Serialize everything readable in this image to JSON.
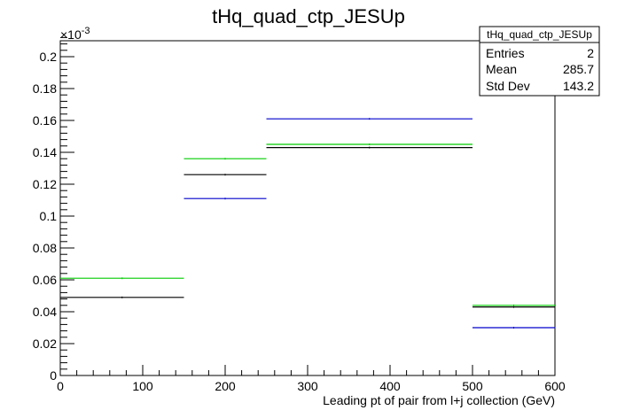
{
  "chart_data": {
    "type": "histogram",
    "title": "tHq_quad_ctp_JESUp",
    "xlabel": "Leading pt of pair from l+j collection (GeV)",
    "ylabel": "",
    "xlim": [
      0,
      600
    ],
    "ylim": [
      0,
      0.21
    ],
    "y_multiplier_label": "×10",
    "y_multiplier_exponent": "-3",
    "x_ticks": [
      0,
      100,
      200,
      300,
      400,
      500,
      600
    ],
    "x_tick_labels": [
      "0",
      "100",
      "200",
      "300",
      "400",
      "500",
      "600"
    ],
    "y_ticks": [
      0,
      0.02,
      0.04,
      0.06,
      0.08,
      0.1,
      0.12,
      0.14,
      0.16,
      0.18,
      0.2
    ],
    "y_tick_labels": [
      "0",
      "0.02",
      "0.04",
      "0.06",
      "0.08",
      "0.1",
      "0.12",
      "0.14",
      "0.16",
      "0.18",
      "0.2"
    ],
    "bin_edges": [
      0,
      150,
      250,
      500,
      600
    ],
    "series": [
      {
        "color": "#000000",
        "values": [
          0.049,
          0.126,
          0.143,
          0.043
        ]
      },
      {
        "color": "#00cc00",
        "values": [
          0.061,
          0.136,
          0.145,
          0.044
        ]
      },
      {
        "color": "#0000cc",
        "values": [
          0.0,
          0.111,
          0.161,
          0.03
        ]
      }
    ],
    "grid": false,
    "legend": "none"
  },
  "stats_box": {
    "title": "tHq_quad_ctp_JESUp",
    "rows": [
      {
        "label": "Entries",
        "value": "2"
      },
      {
        "label": "Mean",
        "value": "285.7"
      },
      {
        "label": "Std Dev",
        "value": "143.2"
      }
    ]
  }
}
